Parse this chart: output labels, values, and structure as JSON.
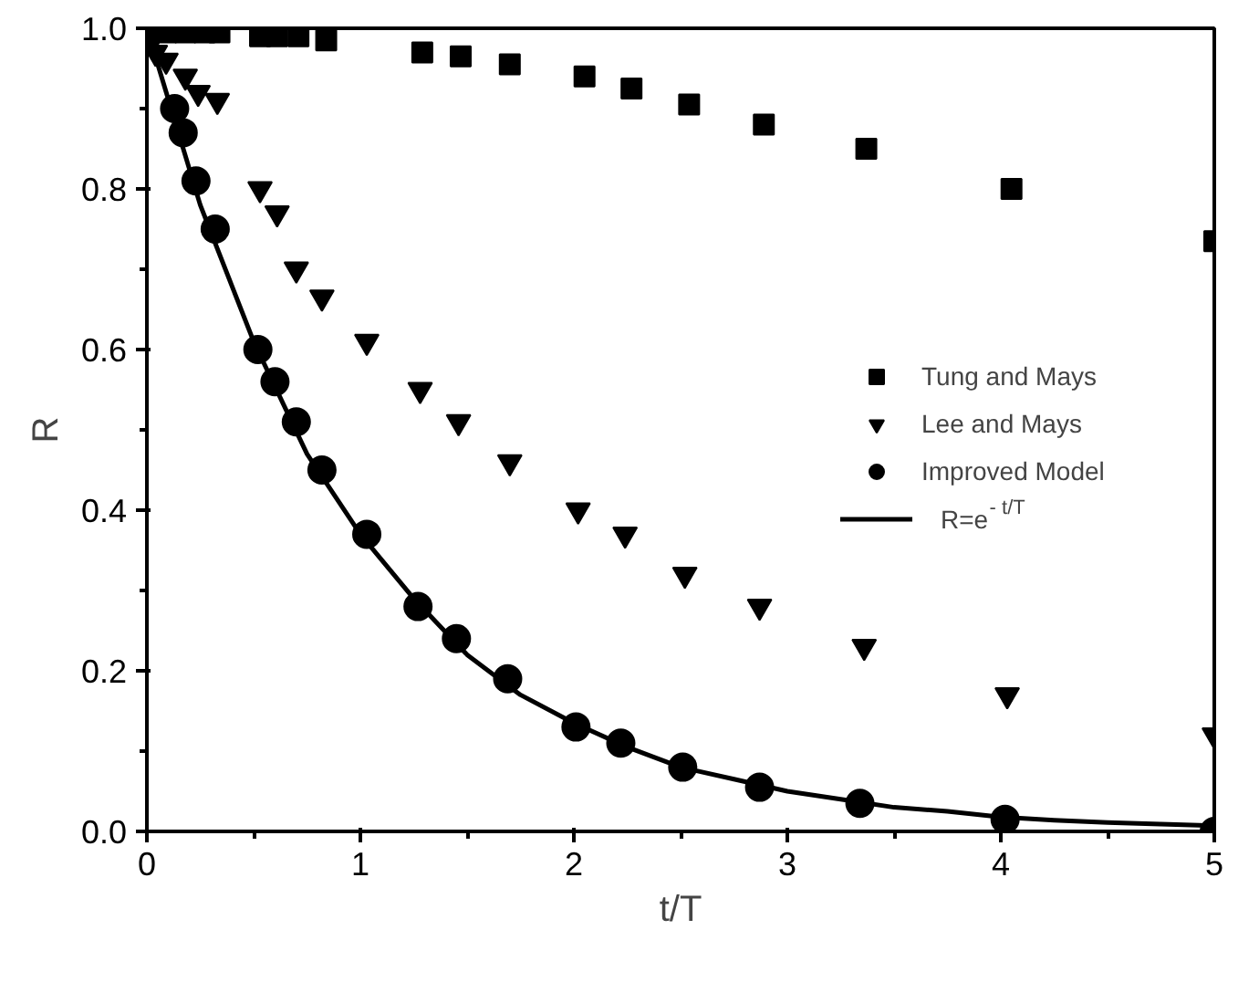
{
  "chart_data": {
    "type": "scatter",
    "xlabel": "t/T",
    "ylabel": "R",
    "xlim": [
      0,
      5
    ],
    "ylim": [
      0,
      1.0
    ],
    "xticks": [
      0,
      1,
      2,
      3,
      4,
      5
    ],
    "yticks": [
      {
        "value": 0,
        "label": "0.0"
      },
      0.2,
      0.4,
      0.6,
      0.8,
      {
        "value": 1,
        "label": "1.0"
      }
    ],
    "grid": false,
    "legend": "right",
    "series": [
      {
        "name": "Tung and Mays",
        "color": "#000000",
        "marker": "square",
        "x": [
          0.09,
          0.18,
          0.27,
          0.34,
          0.53,
          0.61,
          0.71,
          0.84,
          1.29,
          1.47,
          1.7,
          2.05,
          2.27,
          2.54,
          2.89,
          3.37,
          4.05,
          5.0
        ],
        "values": [
          0.995,
          0.995,
          0.995,
          0.995,
          0.99,
          0.99,
          0.99,
          0.985,
          0.97,
          0.965,
          0.955,
          0.94,
          0.925,
          0.905,
          0.88,
          0.85,
          0.8,
          0.735
        ]
      },
      {
        "name": "Lee and Mays",
        "color": "#000000",
        "marker": "triangle",
        "x": [
          0.04,
          0.09,
          0.18,
          0.24,
          0.33,
          0.53,
          0.61,
          0.7,
          0.82,
          1.03,
          1.28,
          1.46,
          1.7,
          2.02,
          2.24,
          2.52,
          2.87,
          3.36,
          4.03,
          5.0
        ],
        "values": [
          0.97,
          0.96,
          0.94,
          0.92,
          0.91,
          0.8,
          0.77,
          0.7,
          0.665,
          0.61,
          0.55,
          0.51,
          0.46,
          0.4,
          0.37,
          0.32,
          0.28,
          0.23,
          0.17,
          0.12
        ]
      },
      {
        "name": "Improved Model",
        "color": "#000000",
        "marker": "circle",
        "x": [
          0,
          0.13,
          0.17,
          0.23,
          0.32,
          0.52,
          0.6,
          0.7,
          0.82,
          1.03,
          1.27,
          1.45,
          1.69,
          2.01,
          2.22,
          2.51,
          2.87,
          3.34,
          4.02,
          5.0
        ],
        "values": [
          0.99,
          0.9,
          0.87,
          0.81,
          0.75,
          0.6,
          0.56,
          0.51,
          0.45,
          0.37,
          0.28,
          0.24,
          0.19,
          0.13,
          0.11,
          0.08,
          0.055,
          0.035,
          0.015,
          0.0
        ]
      },
      {
        "name": "R=e$^{- t/T}$",
        "color": "#000000",
        "type": "line",
        "line_style": "solid",
        "x": [
          0,
          0.25,
          0.5,
          0.75,
          1,
          1.25,
          1.5,
          1.75,
          2,
          2.25,
          2.5,
          2.75,
          3,
          3.25,
          3.5,
          3.75,
          4,
          4.25,
          4.5,
          4.75,
          5
        ],
        "values": [
          1.0,
          0.78,
          0.61,
          0.47,
          0.37,
          0.29,
          0.22,
          0.17,
          0.135,
          0.105,
          0.08,
          0.065,
          0.05,
          0.04,
          0.03,
          0.025,
          0.018,
          0.014,
          0.011,
          0.009,
          0.007
        ]
      }
    ]
  }
}
